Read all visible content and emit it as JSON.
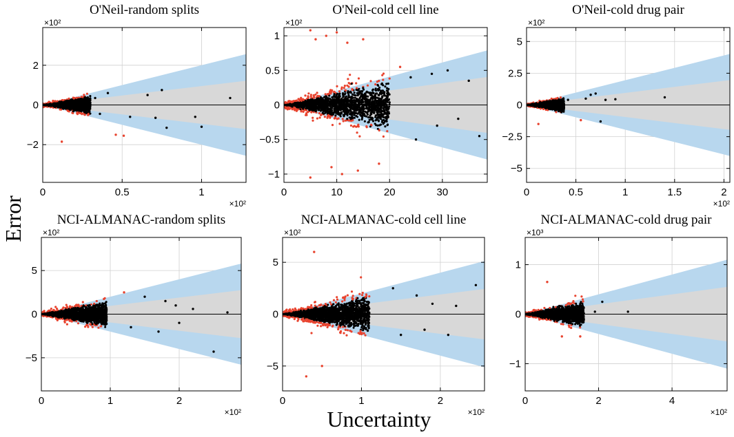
{
  "figure": {
    "ylabel": "Error",
    "xlabel": "Uncertainty"
  },
  "colors": {
    "outer_band": "#b8d7ee",
    "inner_band": "#d8d8d8",
    "inside": "#000000",
    "outside": "#e8432e",
    "grid": "#d0d0d0"
  },
  "chart_data": [
    {
      "type": "scatter",
      "title": "O'Neil-random splits",
      "x_multiplier": "×10²",
      "y_multiplier": "×10²",
      "xlim": [
        0,
        1.28
      ],
      "ylim": [
        -3.9,
        3.9
      ],
      "xticks": [
        0,
        0.5,
        1
      ],
      "xtick_labels": [
        "0",
        "0.5",
        "1"
      ],
      "yticks": [
        -2,
        0,
        2
      ],
      "ytick_labels": [
        "−2",
        "0",
        "2"
      ],
      "inner_slope": 0.95,
      "outer_slope": 2.0,
      "dense_x_max": 0.3,
      "spread": 0.55,
      "outliers": [
        [
          0.12,
          -1.85
        ],
        [
          0.33,
          0.35
        ],
        [
          0.36,
          -0.45
        ],
        [
          0.41,
          0.6
        ],
        [
          0.46,
          -1.5
        ],
        [
          0.51,
          -1.55
        ],
        [
          0.55,
          -0.6
        ],
        [
          0.66,
          0.5
        ],
        [
          0.71,
          -0.65
        ],
        [
          0.75,
          0.75
        ],
        [
          0.78,
          -1.15
        ],
        [
          0.96,
          -0.6
        ],
        [
          1.0,
          -1.1
        ],
        [
          1.18,
          0.35
        ]
      ]
    },
    {
      "type": "scatter",
      "title": "O'Neil-cold cell line",
      "x_multiplier": "",
      "y_multiplier": "×10²",
      "xlim": [
        0,
        38.5
      ],
      "ylim": [
        -1.12,
        1.12
      ],
      "xticks": [
        0,
        10,
        20,
        30
      ],
      "xtick_labels": [
        "0",
        "10",
        "20",
        "30"
      ],
      "yticks": [
        -1,
        -0.5,
        0,
        0.5,
        1
      ],
      "ytick_labels": [
        "−1",
        "−0.5",
        "0",
        "0.5",
        "1"
      ],
      "inner_slope": 0.0105,
      "outer_slope": 0.0205,
      "dense_x_max": 20,
      "spread": 0.7,
      "outliers": [
        [
          5,
          1.08
        ],
        [
          6,
          0.95
        ],
        [
          8,
          1.0
        ],
        [
          10,
          1.05
        ],
        [
          12,
          0.9
        ],
        [
          15,
          0.95
        ],
        [
          5,
          -1.05
        ],
        [
          9,
          -0.9
        ],
        [
          11,
          -1.0
        ],
        [
          14,
          -0.95
        ],
        [
          18,
          -0.85
        ],
        [
          22,
          0.55
        ],
        [
          24,
          0.4
        ],
        [
          25,
          -0.5
        ],
        [
          28,
          0.45
        ],
        [
          29,
          -0.3
        ],
        [
          31,
          0.5
        ],
        [
          33,
          -0.2
        ],
        [
          35,
          0.35
        ],
        [
          37,
          -0.45
        ]
      ]
    },
    {
      "type": "scatter",
      "title": "O'Neil-cold drug pair",
      "x_multiplier": "×10²",
      "y_multiplier": "×10²",
      "xlim": [
        0,
        2.06
      ],
      "ylim": [
        -6.1,
        6.1
      ],
      "xticks": [
        0,
        0.5,
        1,
        1.5,
        2
      ],
      "xtick_labels": [
        "0",
        "0.5",
        "1",
        "1.5",
        "2"
      ],
      "yticks": [
        -5,
        -2.5,
        0,
        2.5,
        5
      ],
      "ytick_labels": [
        "−5",
        "−2.5",
        "0",
        "2.5",
        "5"
      ],
      "inner_slope": 0.95,
      "outer_slope": 1.95,
      "dense_x_max": 0.38,
      "spread": 0.5,
      "outliers": [
        [
          0.12,
          -1.5
        ],
        [
          0.42,
          0.4
        ],
        [
          0.55,
          -1.2
        ],
        [
          0.6,
          0.5
        ],
        [
          0.65,
          0.8
        ],
        [
          0.7,
          0.9
        ],
        [
          0.75,
          -1.3
        ],
        [
          0.8,
          0.4
        ],
        [
          0.9,
          0.45
        ],
        [
          1.4,
          0.6
        ]
      ]
    },
    {
      "type": "scatter",
      "title": "NCI-ALMANAC-random splits",
      "x_multiplier": "×10²",
      "y_multiplier": "×10²",
      "xlim": [
        0,
        2.9
      ],
      "ylim": [
        -8.8,
        8.8
      ],
      "xticks": [
        0,
        1,
        2
      ],
      "xtick_labels": [
        "0",
        "1",
        "2"
      ],
      "yticks": [
        -5,
        0,
        5
      ],
      "ytick_labels": [
        "−5",
        "0",
        "5"
      ],
      "inner_slope": 0.95,
      "outer_slope": 2.0,
      "dense_x_max": 0.95,
      "spread": 0.6,
      "outliers": [
        [
          1.2,
          2.5
        ],
        [
          1.3,
          -1.5
        ],
        [
          1.5,
          2.0
        ],
        [
          1.7,
          -2.0
        ],
        [
          1.8,
          1.5
        ],
        [
          1.95,
          1.0
        ],
        [
          2.0,
          -1.0
        ],
        [
          2.2,
          0.6
        ],
        [
          2.5,
          -4.3
        ],
        [
          2.7,
          0.2
        ]
      ]
    },
    {
      "type": "scatter",
      "title": "NCI-ALMANAC-cold cell line",
      "x_multiplier": "×10²",
      "y_multiplier": "×10²",
      "xlim": [
        0,
        2.56
      ],
      "ylim": [
        -7.4,
        7.4
      ],
      "xticks": [
        0,
        1,
        2
      ],
      "xtick_labels": [
        "0",
        "1",
        "2"
      ],
      "yticks": [
        -5,
        0,
        5
      ],
      "ytick_labels": [
        "−5",
        "0",
        "5"
      ],
      "inner_slope": 0.95,
      "outer_slope": 2.0,
      "dense_x_max": 1.1,
      "spread": 0.65,
      "outliers": [
        [
          0.4,
          6.0
        ],
        [
          0.3,
          -6.0
        ],
        [
          0.5,
          -5.0
        ],
        [
          1.4,
          2.5
        ],
        [
          1.5,
          -2.0
        ],
        [
          1.7,
          1.8
        ],
        [
          1.8,
          -1.5
        ],
        [
          1.9,
          1.0
        ],
        [
          2.1,
          -2.0
        ],
        [
          2.2,
          0.8
        ],
        [
          2.45,
          2.8
        ]
      ]
    },
    {
      "type": "scatter",
      "title": "NCI-ALMANAC-cold drug pair",
      "x_multiplier": "×10²",
      "y_multiplier": "×10³",
      "xlim": [
        0,
        5.5
      ],
      "ylim": [
        -1.55,
        1.55
      ],
      "xticks": [
        0,
        2,
        4
      ],
      "xtick_labels": [
        "0",
        "2",
        "4"
      ],
      "yticks": [
        -1,
        0,
        1
      ],
      "ytick_labels": [
        "−1",
        "0",
        "1"
      ],
      "inner_slope": 0.1,
      "outer_slope": 0.2,
      "dense_x_max": 1.6,
      "spread": 0.55,
      "outliers": [
        [
          0.6,
          0.65
        ],
        [
          1.0,
          -0.45
        ],
        [
          1.5,
          -0.45
        ],
        [
          1.9,
          0.05
        ],
        [
          2.1,
          0.25
        ],
        [
          2.8,
          0.05
        ]
      ]
    }
  ]
}
